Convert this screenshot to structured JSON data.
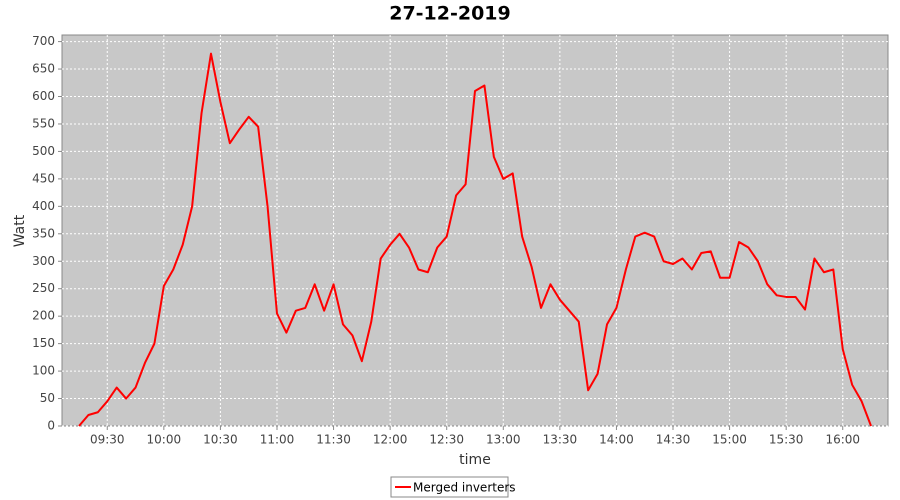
{
  "chart_data": {
    "type": "line",
    "title": "27-12-2019",
    "x_label": "time",
    "y_label": "Watt",
    "x": [
      "09:15",
      "09:20",
      "09:25",
      "09:30",
      "09:35",
      "09:40",
      "09:45",
      "09:50",
      "09:55",
      "10:00",
      "10:05",
      "10:10",
      "10:15",
      "10:20",
      "10:25",
      "10:30",
      "10:35",
      "10:40",
      "10:45",
      "10:50",
      "10:55",
      "11:00",
      "11:05",
      "11:10",
      "11:15",
      "11:20",
      "11:25",
      "11:30",
      "11:35",
      "11:40",
      "11:45",
      "11:50",
      "11:55",
      "12:00",
      "12:05",
      "12:10",
      "12:15",
      "12:20",
      "12:25",
      "12:30",
      "12:35",
      "12:40",
      "12:45",
      "12:50",
      "12:55",
      "13:00",
      "13:05",
      "13:10",
      "13:15",
      "13:20",
      "13:25",
      "13:30",
      "13:35",
      "13:40",
      "13:45",
      "13:50",
      "13:55",
      "14:00",
      "14:05",
      "14:10",
      "14:15",
      "14:20",
      "14:25",
      "14:30",
      "14:35",
      "14:40",
      "14:45",
      "14:50",
      "14:55",
      "15:00",
      "15:05",
      "15:10",
      "15:15",
      "15:20",
      "15:25",
      "15:30",
      "15:35",
      "15:40",
      "15:45",
      "15:50",
      "15:55",
      "16:00",
      "16:05",
      "16:10",
      "16:15"
    ],
    "series": [
      {
        "name": "Merged inverters",
        "color": "#ff0000",
        "values": [
          0,
          20,
          25,
          45,
          70,
          50,
          70,
          115,
          150,
          255,
          285,
          330,
          400,
          570,
          678,
          590,
          515,
          540,
          563,
          545,
          400,
          205,
          170,
          210,
          215,
          258,
          210,
          258,
          185,
          165,
          118,
          190,
          305,
          330,
          350,
          325,
          285,
          280,
          325,
          345,
          420,
          440,
          610,
          620,
          490,
          450,
          460,
          345,
          290,
          215,
          258,
          230,
          210,
          190,
          65,
          95,
          185,
          215,
          285,
          345,
          352,
          345,
          300,
          295,
          305,
          285,
          315,
          318,
          270,
          270,
          335,
          325,
          300,
          258,
          238,
          235,
          235,
          212,
          305,
          280,
          285,
          140,
          75,
          45,
          0
        ]
      }
    ],
    "xlim": [
      "09:06",
      "16:24"
    ],
    "xticks": [
      "09:30",
      "10:00",
      "10:30",
      "11:00",
      "11:30",
      "12:00",
      "12:30",
      "13:00",
      "13:30",
      "14:00",
      "14:30",
      "15:00",
      "15:30",
      "16:00"
    ],
    "ylim": [
      0,
      712
    ],
    "yticks": [
      0,
      50,
      100,
      150,
      200,
      250,
      300,
      350,
      400,
      450,
      500,
      550,
      600,
      650,
      700
    ],
    "grid": true,
    "legend": "bottom"
  }
}
